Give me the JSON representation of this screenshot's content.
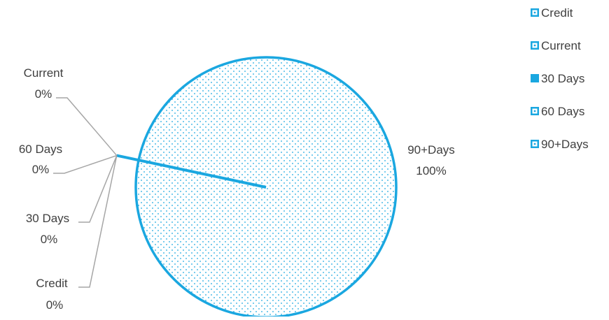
{
  "chart_data": {
    "type": "pie",
    "title": "",
    "categories": [
      "Credit",
      "Current",
      "30 Days",
      "60 Days",
      "90+Days"
    ],
    "values": [
      0,
      0,
      0,
      0,
      100
    ],
    "data_labels": [
      {
        "category": "Credit",
        "percent": "0%"
      },
      {
        "category": "Current",
        "percent": "0%"
      },
      {
        "category": "30 Days",
        "percent": "0%"
      },
      {
        "category": "60 Days",
        "percent": "0%"
      },
      {
        "category": "90+Days",
        "percent": "100%"
      }
    ],
    "legend": {
      "placement": "right",
      "entries": [
        "Credit",
        "Current",
        "30 Days",
        "60 Days",
        "90+Days"
      ]
    },
    "colors": {
      "accent": "#1aa7e0",
      "dots": "#1aa7e0",
      "leader_line": "#a6a6a6",
      "text": "#404040"
    }
  }
}
